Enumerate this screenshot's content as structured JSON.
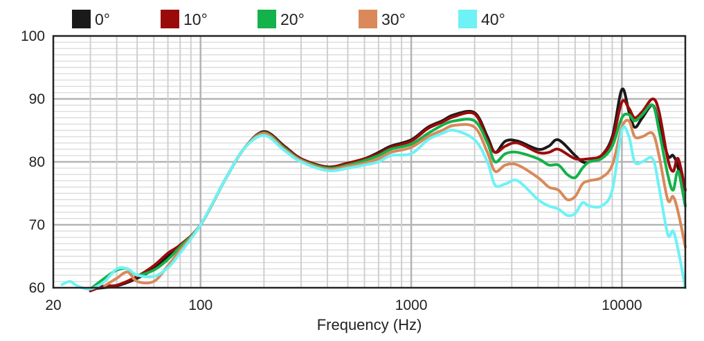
{
  "chart_data": {
    "type": "line",
    "title": "",
    "xlabel": "Frequency (Hz)",
    "ylabel": "",
    "xscale": "log",
    "xlim": [
      20,
      20000
    ],
    "ylim": [
      60,
      100
    ],
    "x_ticks": [
      {
        "value": 20,
        "label": "20"
      },
      {
        "value": 100,
        "label": "100"
      },
      {
        "value": 1000,
        "label": "1000"
      },
      {
        "value": 10000,
        "label": "10000"
      }
    ],
    "y_ticks": [
      {
        "value": 60,
        "label": "60"
      },
      {
        "value": 70,
        "label": "70"
      },
      {
        "value": 80,
        "label": "80"
      },
      {
        "value": 90,
        "label": "90"
      },
      {
        "value": 100,
        "label": "100"
      }
    ],
    "grid": true,
    "legend_position": "top",
    "series": [
      {
        "name": "0°",
        "color": "#1a1a1a",
        "points": [
          [
            30,
            59.8
          ],
          [
            40,
            60.3
          ],
          [
            50,
            61.5
          ],
          [
            60,
            63
          ],
          [
            70,
            65
          ],
          [
            80,
            66.5
          ],
          [
            100,
            70
          ],
          [
            130,
            77
          ],
          [
            160,
            82
          ],
          [
            200,
            84.8
          ],
          [
            250,
            82.5
          ],
          [
            300,
            80.5
          ],
          [
            400,
            79.2
          ],
          [
            500,
            79.8
          ],
          [
            600,
            80.5
          ],
          [
            700,
            81.5
          ],
          [
            800,
            82.5
          ],
          [
            1000,
            83.5
          ],
          [
            1200,
            85.5
          ],
          [
            1400,
            86.5
          ],
          [
            1600,
            87.5
          ],
          [
            2000,
            87.8
          ],
          [
            2300,
            84
          ],
          [
            2500,
            81.5
          ],
          [
            2800,
            83.3
          ],
          [
            3200,
            83.3
          ],
          [
            4000,
            82
          ],
          [
            4500,
            82.5
          ],
          [
            5000,
            83.5
          ],
          [
            6000,
            81
          ],
          [
            6500,
            80
          ],
          [
            7000,
            80
          ],
          [
            8000,
            81
          ],
          [
            9000,
            84
          ],
          [
            10000,
            91.5
          ],
          [
            10800,
            88
          ],
          [
            11500,
            85.5
          ],
          [
            12500,
            87
          ],
          [
            14000,
            89
          ],
          [
            15000,
            86
          ],
          [
            16500,
            81
          ],
          [
            17500,
            81
          ],
          [
            18500,
            79
          ],
          [
            20000,
            73
          ]
        ]
      },
      {
        "name": "10°",
        "color": "#9b0a0a",
        "points": [
          [
            30,
            59.5
          ],
          [
            35,
            60.3
          ],
          [
            40,
            60.4
          ],
          [
            50,
            61.8
          ],
          [
            60,
            63.5
          ],
          [
            70,
            65.5
          ],
          [
            80,
            66.8
          ],
          [
            100,
            70
          ],
          [
            130,
            77
          ],
          [
            160,
            82
          ],
          [
            200,
            84.7
          ],
          [
            250,
            82.4
          ],
          [
            300,
            80.5
          ],
          [
            400,
            79.2
          ],
          [
            500,
            79.8
          ],
          [
            600,
            80.5
          ],
          [
            700,
            81.3
          ],
          [
            800,
            82.3
          ],
          [
            1000,
            83.3
          ],
          [
            1200,
            85.3
          ],
          [
            1400,
            86.3
          ],
          [
            1600,
            87.2
          ],
          [
            2000,
            87.6
          ],
          [
            2300,
            83.5
          ],
          [
            2500,
            81.5
          ],
          [
            2800,
            82.5
          ],
          [
            3200,
            83
          ],
          [
            4000,
            81.5
          ],
          [
            4500,
            81.5
          ],
          [
            5000,
            82
          ],
          [
            6000,
            80.5
          ],
          [
            7000,
            80.5
          ],
          [
            8000,
            81
          ],
          [
            9000,
            83.5
          ],
          [
            10000,
            89.5
          ],
          [
            10800,
            88.5
          ],
          [
            11500,
            87
          ],
          [
            12500,
            88
          ],
          [
            14000,
            90
          ],
          [
            15000,
            88
          ],
          [
            16500,
            80.5
          ],
          [
            17500,
            78.5
          ],
          [
            18500,
            80.5
          ],
          [
            20000,
            75.5
          ]
        ]
      },
      {
        "name": "20°",
        "color": "#14b24a",
        "points": [
          [
            30,
            59.8
          ],
          [
            35,
            61.5
          ],
          [
            40,
            62.8
          ],
          [
            45,
            63
          ],
          [
            50,
            62
          ],
          [
            60,
            62.8
          ],
          [
            70,
            64.5
          ],
          [
            80,
            66.5
          ],
          [
            100,
            70
          ],
          [
            130,
            77
          ],
          [
            160,
            82
          ],
          [
            200,
            84.6
          ],
          [
            250,
            82.2
          ],
          [
            300,
            80.3
          ],
          [
            400,
            79
          ],
          [
            500,
            79.5
          ],
          [
            600,
            80.2
          ],
          [
            700,
            81
          ],
          [
            800,
            82
          ],
          [
            1000,
            82.8
          ],
          [
            1200,
            84.5
          ],
          [
            1400,
            85.8
          ],
          [
            1600,
            86.5
          ],
          [
            2000,
            86.5
          ],
          [
            2300,
            83
          ],
          [
            2500,
            80
          ],
          [
            2800,
            81.3
          ],
          [
            3200,
            81.5
          ],
          [
            4000,
            80.5
          ],
          [
            4500,
            79.5
          ],
          [
            5000,
            79.5
          ],
          [
            5500,
            78
          ],
          [
            6000,
            77.5
          ],
          [
            6500,
            79
          ],
          [
            7000,
            80
          ],
          [
            8000,
            80.5
          ],
          [
            9000,
            82.5
          ],
          [
            10000,
            87
          ],
          [
            10800,
            87.5
          ],
          [
            11500,
            86.5
          ],
          [
            12500,
            87.5
          ],
          [
            14000,
            89
          ],
          [
            15000,
            85
          ],
          [
            16500,
            78
          ],
          [
            17500,
            75.5
          ],
          [
            18500,
            78.5
          ],
          [
            20000,
            73
          ]
        ]
      },
      {
        "name": "30°",
        "color": "#d9895a",
        "points": [
          [
            35,
            60.3
          ],
          [
            40,
            61.5
          ],
          [
            45,
            62.5
          ],
          [
            50,
            61
          ],
          [
            60,
            61
          ],
          [
            70,
            63.5
          ],
          [
            80,
            66
          ],
          [
            100,
            70
          ],
          [
            130,
            77
          ],
          [
            160,
            82
          ],
          [
            200,
            84.5
          ],
          [
            250,
            82
          ],
          [
            300,
            80.2
          ],
          [
            400,
            78.8
          ],
          [
            500,
            79.3
          ],
          [
            600,
            79.8
          ],
          [
            700,
            80.5
          ],
          [
            800,
            81.5
          ],
          [
            1000,
            82.3
          ],
          [
            1200,
            84
          ],
          [
            1400,
            85
          ],
          [
            1600,
            85.8
          ],
          [
            2000,
            85.5
          ],
          [
            2300,
            81.5
          ],
          [
            2500,
            78.5
          ],
          [
            2800,
            79.5
          ],
          [
            3200,
            79.5
          ],
          [
            4000,
            77.5
          ],
          [
            4500,
            76
          ],
          [
            5000,
            75.5
          ],
          [
            5500,
            74
          ],
          [
            6000,
            74.5
          ],
          [
            6500,
            76.5
          ],
          [
            7000,
            77
          ],
          [
            8000,
            77.5
          ],
          [
            9000,
            79.5
          ],
          [
            10000,
            85.5
          ],
          [
            10800,
            86.5
          ],
          [
            11500,
            84
          ],
          [
            12500,
            84
          ],
          [
            14000,
            84.5
          ],
          [
            15000,
            81
          ],
          [
            16500,
            74
          ],
          [
            17500,
            74.5
          ],
          [
            18500,
            72
          ],
          [
            20000,
            66.5
          ]
        ]
      },
      {
        "name": "40°",
        "color": "#6ef2f5",
        "points": [
          [
            22,
            60.5
          ],
          [
            24,
            61
          ],
          [
            26,
            60.3
          ],
          [
            30,
            59.8
          ],
          [
            35,
            61
          ],
          [
            40,
            63
          ],
          [
            45,
            63
          ],
          [
            50,
            62
          ],
          [
            60,
            61.8
          ],
          [
            70,
            63.2
          ],
          [
            80,
            65.5
          ],
          [
            100,
            70
          ],
          [
            130,
            77
          ],
          [
            160,
            82
          ],
          [
            200,
            84.2
          ],
          [
            250,
            81.8
          ],
          [
            300,
            80
          ],
          [
            400,
            78.6
          ],
          [
            500,
            79
          ],
          [
            600,
            79.5
          ],
          [
            700,
            80
          ],
          [
            800,
            81
          ],
          [
            1000,
            81.3
          ],
          [
            1200,
            83.5
          ],
          [
            1400,
            84.5
          ],
          [
            1600,
            85
          ],
          [
            2000,
            83.5
          ],
          [
            2300,
            80
          ],
          [
            2500,
            76.3
          ],
          [
            2800,
            76.5
          ],
          [
            3200,
            77
          ],
          [
            4000,
            74
          ],
          [
            4500,
            73
          ],
          [
            5000,
            72.5
          ],
          [
            5500,
            71.5
          ],
          [
            6000,
            71.8
          ],
          [
            6500,
            73.5
          ],
          [
            7000,
            73
          ],
          [
            8000,
            73
          ],
          [
            9000,
            75.5
          ],
          [
            10000,
            85
          ],
          [
            10800,
            84
          ],
          [
            11500,
            80
          ],
          [
            12500,
            80
          ],
          [
            14000,
            80.5
          ],
          [
            15000,
            76
          ],
          [
            16500,
            68.5
          ],
          [
            17500,
            69
          ],
          [
            18500,
            66
          ],
          [
            20000,
            60
          ]
        ]
      }
    ]
  }
}
